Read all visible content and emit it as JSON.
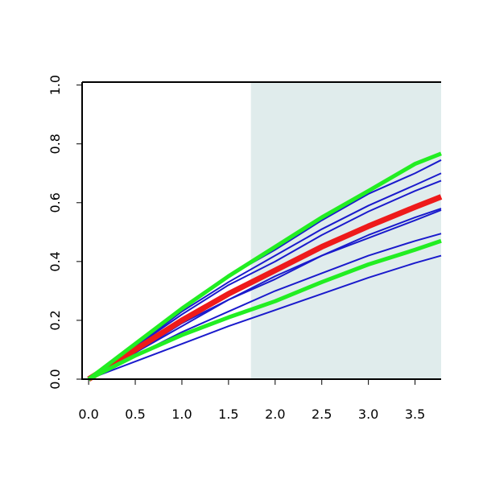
{
  "chart_data": {
    "type": "line",
    "x": [
      0,
      0.5,
      1,
      1.5,
      2,
      2.5,
      3,
      3.5,
      3.78
    ],
    "series": [
      {
        "color": "#1a1acc",
        "values": [
          0,
          0.12,
          0.24,
          0.35,
          0.44,
          0.54,
          0.63,
          0.7,
          0.745
        ]
      },
      {
        "color": "#1a1acc",
        "values": [
          0,
          0.11,
          0.23,
          0.33,
          0.42,
          0.51,
          0.59,
          0.66,
          0.7
        ]
      },
      {
        "color": "#1a1acc",
        "values": [
          0,
          0.11,
          0.22,
          0.32,
          0.4,
          0.49,
          0.57,
          0.64,
          0.675
        ]
      },
      {
        "color": "#1a1acc",
        "values": [
          0,
          0.09,
          0.19,
          0.27,
          0.35,
          0.42,
          0.49,
          0.55,
          0.58
        ]
      },
      {
        "color": "#1a1acc",
        "values": [
          0,
          0.09,
          0.18,
          0.27,
          0.34,
          0.42,
          0.48,
          0.54,
          0.575
        ]
      },
      {
        "color": "#1a1acc",
        "values": [
          0,
          0.08,
          0.16,
          0.23,
          0.3,
          0.36,
          0.42,
          0.47,
          0.495
        ]
      },
      {
        "color": "#1a1acc",
        "values": [
          0,
          0.06,
          0.12,
          0.18,
          0.235,
          0.29,
          0.345,
          0.395,
          0.42
        ]
      },
      {
        "color": "#ee1a1a",
        "values": [
          0,
          0.1,
          0.2,
          0.29,
          0.37,
          0.45,
          0.52,
          0.585,
          0.62
        ]
      },
      {
        "color": "#22ee22",
        "values": [
          0,
          0.12,
          0.24,
          0.35,
          0.45,
          0.55,
          0.64,
          0.732,
          0.767
        ]
      },
      {
        "color": "#22ee22",
        "values": [
          0,
          0.08,
          0.15,
          0.21,
          0.265,
          0.33,
          0.39,
          0.44,
          0.47
        ]
      }
    ],
    "shade_from": 1.74,
    "shade_color": "#e0ecec",
    "xlim": [
      -0.07,
      3.78
    ],
    "ylim": [
      0,
      1.01
    ],
    "xticks": [
      {
        "value": 0,
        "label": "0.0"
      },
      0.5,
      {
        "value": 1,
        "label": "1.0"
      },
      1.5,
      {
        "value": 2,
        "label": "2.0"
      },
      2.5,
      {
        "value": 3,
        "label": "3.0"
      },
      3.5
    ],
    "yticks": [
      {
        "value": 0,
        "label": "0.0"
      },
      0.2,
      0.4,
      0.6,
      0.8,
      {
        "value": 1,
        "label": "1.0"
      }
    ]
  }
}
